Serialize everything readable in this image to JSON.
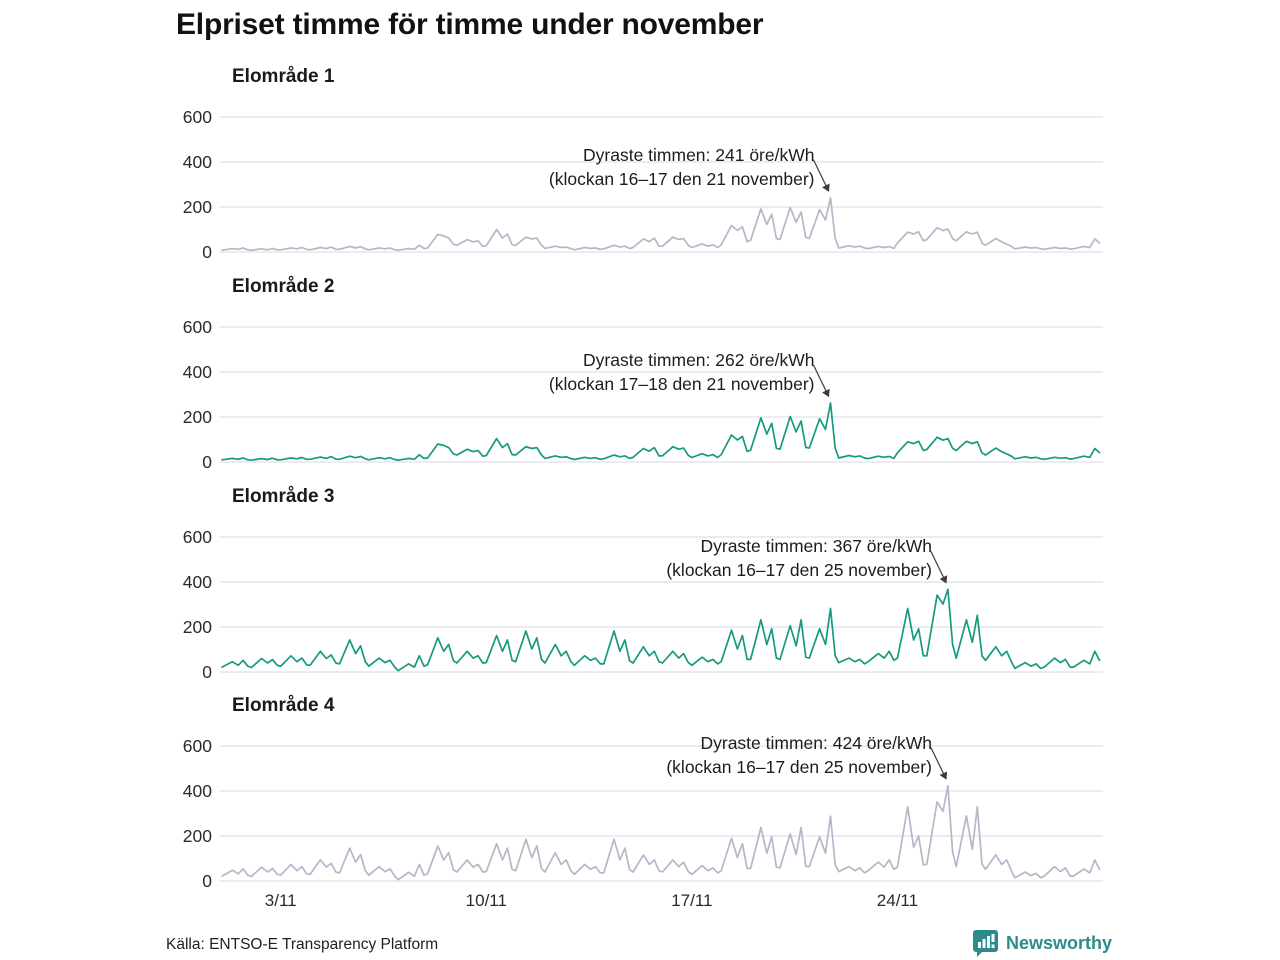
{
  "title": "Elpriset timme för timme under november",
  "source": "Källa: ENTSO-E Transparency Platform",
  "logo_text": "Newsworthy",
  "colors": {
    "gray_line": "#b8b5c8",
    "teal_line": "#17997f",
    "grid": "#e0e0e6",
    "arrow": "#3c3c3c",
    "brand": "#2e8b8b"
  },
  "x_axis": {
    "ticks": [
      "3/11",
      "10/11",
      "17/11",
      "24/11"
    ],
    "tick_days": [
      2,
      9,
      16,
      23
    ],
    "days_in_month": 30
  },
  "chart_data": [
    {
      "type": "line",
      "title": "Elområde 1",
      "unit": "öre/kWh",
      "color_key": "gray_line",
      "yticks": [
        600,
        400,
        200,
        0
      ],
      "ylim": [
        0,
        650
      ],
      "xticks": [
        "3/11",
        "10/11",
        "17/11",
        "24/11"
      ],
      "annotation": {
        "line1": "Dyraste timmen: 241 öre/kWh",
        "line2": "(klockan 16–17 den 21 november)",
        "value": 241,
        "hour": "16–17",
        "date": "21 november"
      },
      "points_per_day": 5,
      "hour_fractions": [
        0.0,
        0.35,
        0.55,
        0.72,
        0.88
      ],
      "days": [
        [
          8,
          15,
          12,
          18,
          10
        ],
        [
          8,
          14,
          10,
          16,
          10
        ],
        [
          10,
          18,
          14,
          20,
          12
        ],
        [
          10,
          20,
          15,
          22,
          12
        ],
        [
          12,
          25,
          18,
          24,
          14
        ],
        [
          10,
          18,
          14,
          18,
          10
        ],
        [
          8,
          15,
          12,
          30,
          15
        ],
        [
          18,
          78,
          72,
          62,
          35
        ],
        [
          30,
          55,
          45,
          50,
          25
        ],
        [
          28,
          100,
          62,
          80,
          32
        ],
        [
          30,
          66,
          58,
          62,
          30
        ],
        [
          16,
          26,
          20,
          22,
          15
        ],
        [
          10,
          20,
          16,
          18,
          12
        ],
        [
          14,
          30,
          22,
          26,
          16
        ],
        [
          20,
          58,
          46,
          62,
          26
        ],
        [
          26,
          66,
          56,
          60,
          30
        ],
        [
          20,
          36,
          26,
          32,
          20
        ],
        [
          32,
          118,
          96,
          112,
          46
        ],
        [
          52,
          192,
          122,
          168,
          60
        ],
        [
          56,
          198,
          132,
          178,
          64
        ],
        [
          60,
          188,
          142,
          241,
          60
        ],
        [
          18,
          28,
          22,
          26,
          18
        ],
        [
          15,
          25,
          20,
          24,
          16
        ],
        [
          40,
          88,
          80,
          90,
          50
        ],
        [
          55,
          108,
          95,
          102,
          60
        ],
        [
          50,
          90,
          80,
          88,
          40
        ],
        [
          30,
          60,
          45,
          35,
          25
        ],
        [
          14,
          22,
          18,
          20,
          14
        ],
        [
          12,
          20,
          16,
          18,
          13
        ],
        [
          14,
          25,
          20,
          58,
          40
        ]
      ]
    },
    {
      "type": "line",
      "title": "Elområde 2",
      "unit": "öre/kWh",
      "color_key": "teal_line",
      "yticks": [
        600,
        400,
        200,
        0
      ],
      "ylim": [
        0,
        650
      ],
      "xticks": [
        "3/11",
        "10/11",
        "17/11",
        "24/11"
      ],
      "annotation": {
        "line1": "Dyraste timmen: 262 öre/kWh",
        "line2": "(klockan 17–18 den 21 november)",
        "value": 262,
        "hour": "17–18",
        "date": "21 november"
      },
      "points_per_day": 5,
      "hour_fractions": [
        0.0,
        0.35,
        0.55,
        0.72,
        0.88
      ],
      "days": [
        [
          10,
          16,
          12,
          18,
          10
        ],
        [
          8,
          15,
          11,
          17,
          10
        ],
        [
          10,
          18,
          14,
          20,
          12
        ],
        [
          12,
          22,
          16,
          24,
          13
        ],
        [
          12,
          26,
          19,
          25,
          14
        ],
        [
          10,
          19,
          14,
          19,
          11
        ],
        [
          8,
          16,
          12,
          32,
          16
        ],
        [
          18,
          80,
          74,
          64,
          36
        ],
        [
          31,
          57,
          46,
          51,
          26
        ],
        [
          29,
          104,
          64,
          82,
          33
        ],
        [
          31,
          68,
          60,
          64,
          31
        ],
        [
          16,
          27,
          21,
          23,
          15
        ],
        [
          11,
          21,
          16,
          19,
          12
        ],
        [
          14,
          31,
          23,
          27,
          16
        ],
        [
          21,
          60,
          48,
          64,
          27
        ],
        [
          27,
          68,
          57,
          62,
          30
        ],
        [
          20,
          37,
          27,
          33,
          20
        ],
        [
          33,
          120,
          98,
          114,
          47
        ],
        [
          53,
          196,
          124,
          172,
          61
        ],
        [
          57,
          202,
          134,
          182,
          65
        ],
        [
          62,
          192,
          145,
          262,
          62
        ],
        [
          18,
          29,
          23,
          27,
          18
        ],
        [
          15,
          26,
          21,
          25,
          16
        ],
        [
          41,
          90,
          82,
          92,
          51
        ],
        [
          56,
          110,
          97,
          104,
          61
        ],
        [
          51,
          92,
          82,
          90,
          41
        ],
        [
          31,
          62,
          46,
          36,
          26
        ],
        [
          14,
          23,
          18,
          21,
          14
        ],
        [
          12,
          21,
          17,
          19,
          13
        ],
        [
          15,
          26,
          21,
          60,
          42
        ]
      ]
    },
    {
      "type": "line",
      "title": "Elområde 3",
      "unit": "öre/kWh",
      "color_key": "teal_line",
      "yticks": [
        600,
        400,
        200,
        0
      ],
      "ylim": [
        0,
        650
      ],
      "xticks": [
        "3/11",
        "10/11",
        "17/11",
        "24/11"
      ],
      "annotation": {
        "line1": "Dyraste timmen: 367 öre/kWh",
        "line2": "(klockan 16–17 den 25 november)",
        "value": 367,
        "hour": "16–17",
        "date": "25 november"
      },
      "points_per_day": 5,
      "hour_fractions": [
        0.0,
        0.35,
        0.55,
        0.72,
        0.88
      ],
      "days": [
        [
          22,
          46,
          30,
          52,
          26
        ],
        [
          20,
          60,
          40,
          55,
          30
        ],
        [
          26,
          72,
          46,
          62,
          32
        ],
        [
          30,
          92,
          60,
          76,
          40
        ],
        [
          36,
          142,
          82,
          116,
          46
        ],
        [
          26,
          62,
          42,
          52,
          22
        ],
        [
          6,
          36,
          22,
          72,
          26
        ],
        [
          32,
          152,
          92,
          122,
          50
        ],
        [
          40,
          92,
          62,
          72,
          40
        ],
        [
          42,
          162,
          92,
          142,
          52
        ],
        [
          46,
          182,
          102,
          152,
          56
        ],
        [
          40,
          122,
          72,
          92,
          46
        ],
        [
          30,
          72,
          52,
          62,
          36
        ],
        [
          36,
          182,
          92,
          142,
          50
        ],
        [
          40,
          112,
          72,
          92,
          46
        ],
        [
          40,
          92,
          62,
          82,
          42
        ],
        [
          30,
          66,
          46,
          56,
          36
        ],
        [
          46,
          186,
          102,
          162,
          56
        ],
        [
          56,
          232,
          122,
          192,
          62
        ],
        [
          56,
          206,
          116,
          232,
          66
        ],
        [
          62,
          192,
          122,
          282,
          72
        ],
        [
          42,
          62,
          46,
          56,
          36
        ],
        [
          46,
          82,
          62,
          92,
          52
        ],
        [
          62,
          282,
          142,
          192,
          72
        ],
        [
          72,
          342,
          302,
          367,
          122
        ],
        [
          62,
          232,
          132,
          252,
          72
        ],
        [
          52,
          112,
          72,
          92,
          46
        ],
        [
          16,
          42,
          26,
          36,
          16
        ],
        [
          22,
          62,
          42,
          56,
          22
        ],
        [
          22,
          52,
          36,
          92,
          52
        ]
      ]
    },
    {
      "type": "line",
      "title": "Elområde 4",
      "unit": "öre/kWh",
      "color_key": "gray_line",
      "yticks": [
        600,
        400,
        200,
        0
      ],
      "ylim": [
        0,
        650
      ],
      "xticks": [
        "3/11",
        "10/11",
        "17/11",
        "24/11"
      ],
      "annotation": {
        "line1": "Dyraste timmen: 424 öre/kWh",
        "line2": "(klockan 16–17 den 25 november)",
        "value": 424,
        "hour": "16–17",
        "date": "25 november"
      },
      "points_per_day": 5,
      "hour_fractions": [
        0.0,
        0.35,
        0.55,
        0.72,
        0.88
      ],
      "days": [
        [
          22,
          48,
          32,
          54,
          26
        ],
        [
          20,
          62,
          40,
          56,
          30
        ],
        [
          26,
          74,
          46,
          64,
          32
        ],
        [
          30,
          94,
          62,
          78,
          40
        ],
        [
          36,
          146,
          84,
          118,
          46
        ],
        [
          26,
          64,
          42,
          54,
          22
        ],
        [
          6,
          38,
          22,
          74,
          26
        ],
        [
          32,
          156,
          94,
          126,
          50
        ],
        [
          40,
          94,
          62,
          74,
          40
        ],
        [
          42,
          166,
          94,
          146,
          52
        ],
        [
          46,
          186,
          104,
          156,
          56
        ],
        [
          40,
          126,
          74,
          94,
          46
        ],
        [
          30,
          74,
          52,
          64,
          36
        ],
        [
          36,
          186,
          94,
          146,
          50
        ],
        [
          40,
          116,
          74,
          94,
          46
        ],
        [
          40,
          94,
          64,
          84,
          42
        ],
        [
          30,
          68,
          46,
          58,
          36
        ],
        [
          46,
          190,
          104,
          166,
          56
        ],
        [
          56,
          238,
          124,
          196,
          62
        ],
        [
          58,
          210,
          118,
          238,
          66
        ],
        [
          64,
          196,
          124,
          288,
          72
        ],
        [
          42,
          64,
          46,
          58,
          36
        ],
        [
          46,
          84,
          62,
          94,
          52
        ],
        [
          62,
          330,
          150,
          200,
          72
        ],
        [
          74,
          352,
          310,
          424,
          130
        ],
        [
          64,
          290,
          140,
          330,
          76
        ],
        [
          52,
          116,
          74,
          94,
          46
        ],
        [
          14,
          40,
          24,
          34,
          14
        ],
        [
          22,
          64,
          42,
          58,
          22
        ],
        [
          22,
          54,
          36,
          94,
          52
        ]
      ]
    }
  ]
}
